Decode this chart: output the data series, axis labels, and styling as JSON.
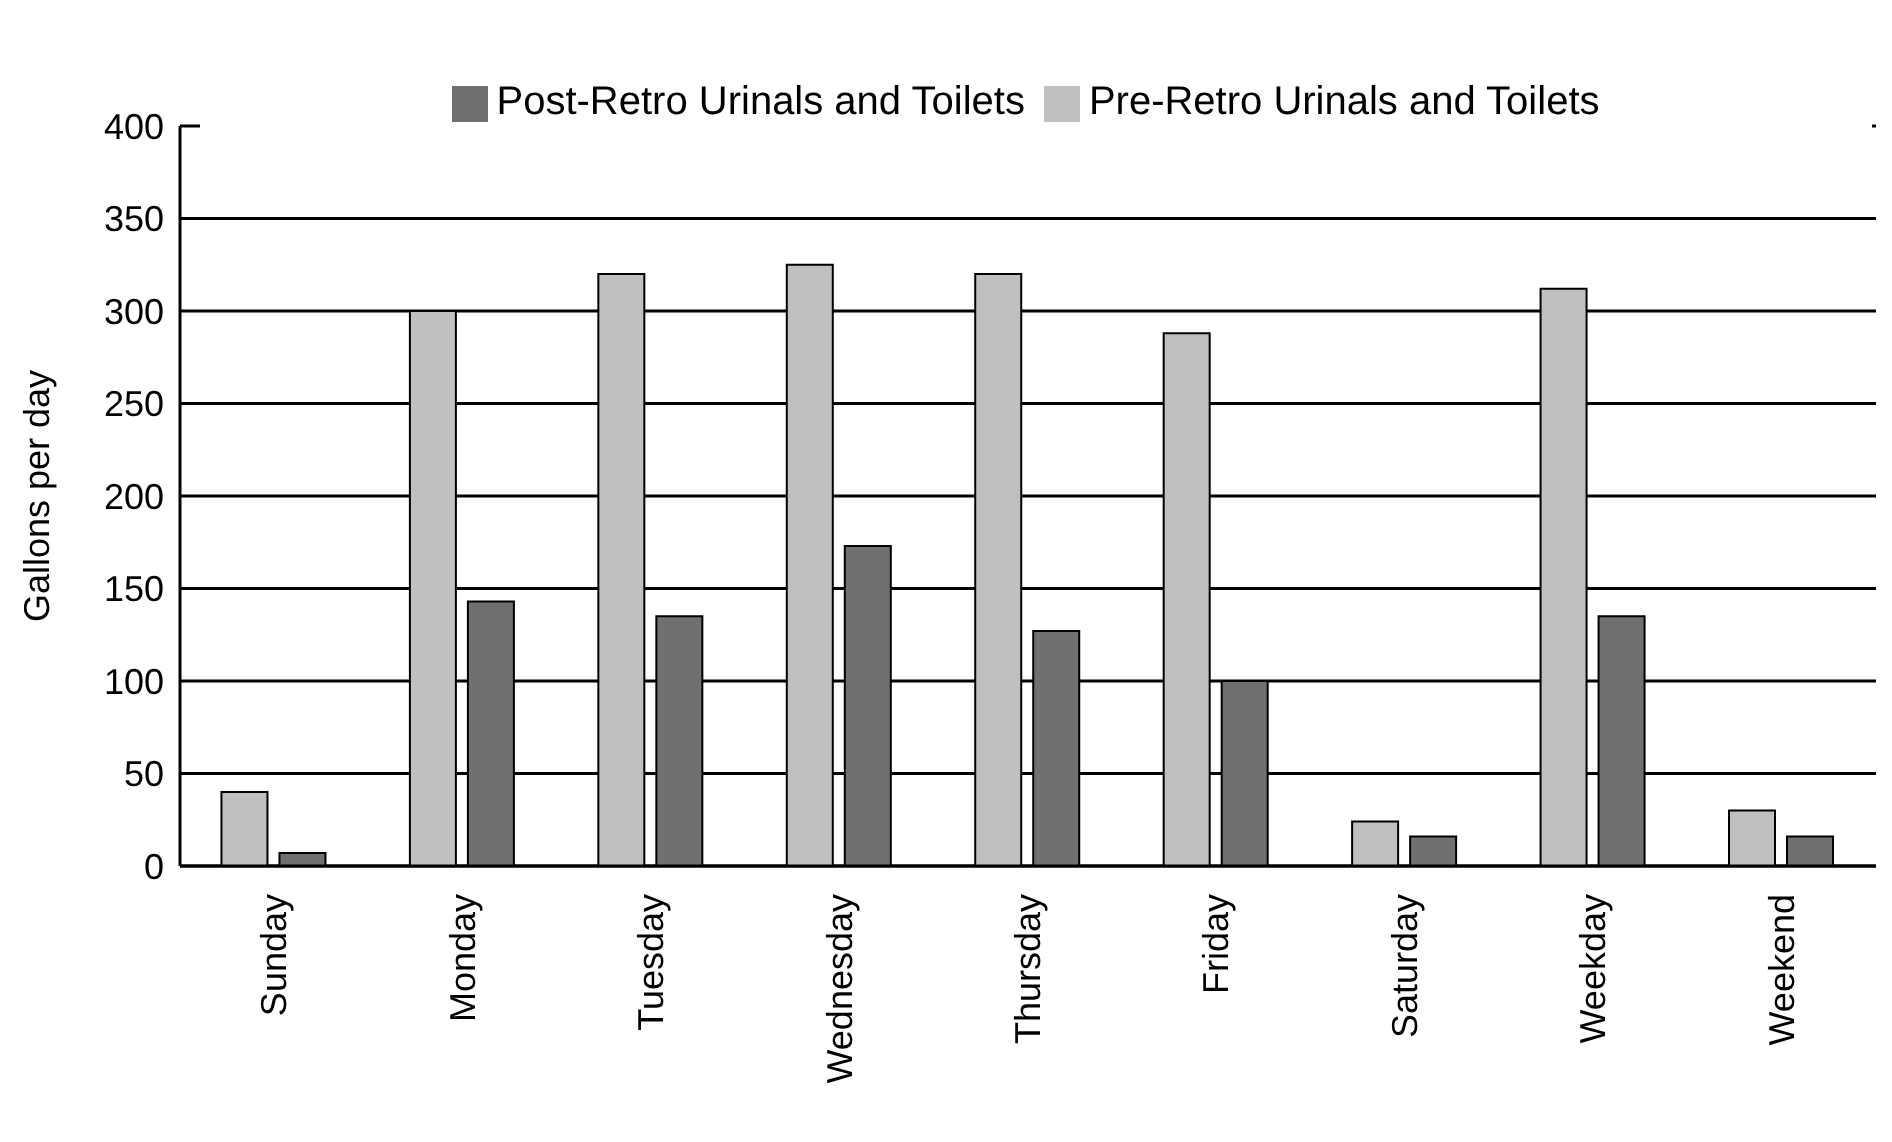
{
  "chart_data": {
    "type": "bar",
    "ylabel": "Gallons per day",
    "categories": [
      "Sunday",
      "Monday",
      "Tuesday",
      "Wednesday",
      "Thursday",
      "Friday",
      "Saturday",
      "Weekday",
      "Weekend"
    ],
    "series": [
      {
        "name": "Pre-Retro Urinals and Toilets",
        "color": "#c0c0c0",
        "values": [
          40,
          300,
          320,
          325,
          320,
          288,
          24,
          312,
          30
        ]
      },
      {
        "name": "Post-Retro Urinals and Toilets",
        "color": "#707070",
        "values": [
          7,
          143,
          135,
          173,
          127,
          100,
          16,
          135,
          16
        ]
      }
    ],
    "ylim": [
      0,
      400
    ],
    "yticks": [
      0,
      50,
      100,
      150,
      200,
      250,
      300,
      350,
      400
    ],
    "grid": "y",
    "legend": "top"
  }
}
